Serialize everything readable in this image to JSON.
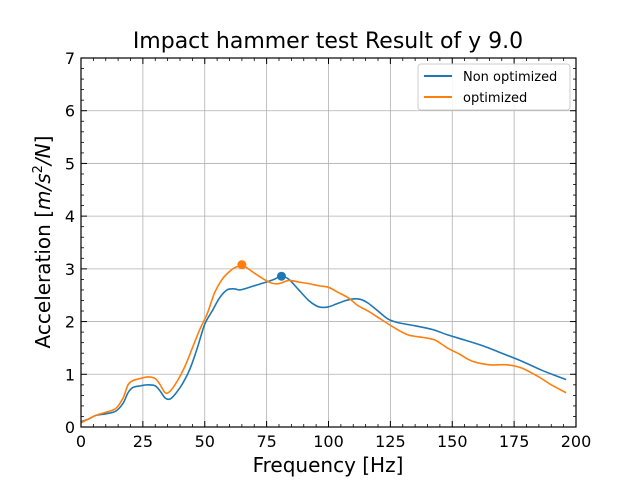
{
  "chart_data": {
    "type": "line",
    "title": "Impact hammer test Result of y 9.0",
    "xlabel": "Frequency [Hz]",
    "ylabel_prefix": "Acceleration [",
    "ylabel_unit_base": "m/s",
    "ylabel_unit_exp": "2",
    "ylabel_unit_tail": "/N",
    "ylabel_suffix": "]",
    "xlim": [
      0,
      200
    ],
    "ylim": [
      0,
      7
    ],
    "x_ticks": [
      0,
      25,
      50,
      75,
      100,
      125,
      150,
      175,
      200
    ],
    "y_ticks": [
      0,
      1,
      2,
      3,
      4,
      5,
      6,
      7
    ],
    "grid": true,
    "legend_position": "top-right",
    "series": [
      {
        "name": "Non optimized",
        "color": "#1f77b4",
        "x": [
          0,
          3,
          6,
          10,
          14,
          17,
          19,
          21,
          24,
          27,
          30,
          32,
          34,
          36,
          38,
          41,
          44,
          47,
          50,
          53,
          56,
          59,
          62,
          64,
          66,
          70,
          75,
          78,
          81,
          84,
          88,
          92,
          95,
          97,
          100,
          103,
          107,
          110,
          113,
          116,
          120,
          124,
          128,
          135,
          142,
          148,
          155,
          163,
          170,
          178,
          186,
          192,
          196
        ],
        "y": [
          0.1,
          0.15,
          0.22,
          0.25,
          0.3,
          0.45,
          0.65,
          0.75,
          0.78,
          0.8,
          0.78,
          0.68,
          0.55,
          0.53,
          0.62,
          0.82,
          1.1,
          1.5,
          1.95,
          2.2,
          2.45,
          2.6,
          2.62,
          2.6,
          2.62,
          2.68,
          2.75,
          2.8,
          2.86,
          2.8,
          2.6,
          2.4,
          2.3,
          2.27,
          2.28,
          2.33,
          2.4,
          2.43,
          2.42,
          2.35,
          2.2,
          2.05,
          1.98,
          1.92,
          1.85,
          1.75,
          1.65,
          1.53,
          1.4,
          1.25,
          1.08,
          0.97,
          0.9
        ]
      },
      {
        "name": "optimized",
        "color": "#ff7f0e",
        "x": [
          0,
          3,
          6,
          10,
          14,
          17,
          19,
          21,
          24,
          27,
          30,
          32,
          34,
          36,
          39,
          42,
          45,
          48,
          51,
          54,
          57,
          60,
          62,
          64,
          66,
          70,
          74,
          77,
          80,
          84,
          88,
          92,
          96,
          100,
          104,
          108,
          112,
          116,
          121,
          126,
          132,
          138,
          143,
          148,
          153,
          158,
          165,
          172,
          178,
          185,
          190,
          196
        ],
        "y": [
          0.08,
          0.15,
          0.22,
          0.28,
          0.35,
          0.55,
          0.8,
          0.88,
          0.92,
          0.95,
          0.92,
          0.8,
          0.65,
          0.68,
          0.88,
          1.15,
          1.5,
          1.85,
          2.15,
          2.55,
          2.8,
          2.95,
          3.02,
          3.05,
          3.05,
          2.92,
          2.8,
          2.73,
          2.72,
          2.78,
          2.75,
          2.72,
          2.68,
          2.65,
          2.55,
          2.45,
          2.3,
          2.2,
          2.05,
          1.9,
          1.75,
          1.7,
          1.65,
          1.5,
          1.38,
          1.25,
          1.18,
          1.18,
          1.12,
          0.95,
          0.8,
          0.65
        ]
      }
    ],
    "peaks": [
      {
        "series": "Non optimized",
        "x": 81,
        "y": 2.86,
        "color": "#1f77b4"
      },
      {
        "series": "optimized",
        "x": 65,
        "y": 3.08,
        "color": "#ff7f0e"
      }
    ]
  }
}
